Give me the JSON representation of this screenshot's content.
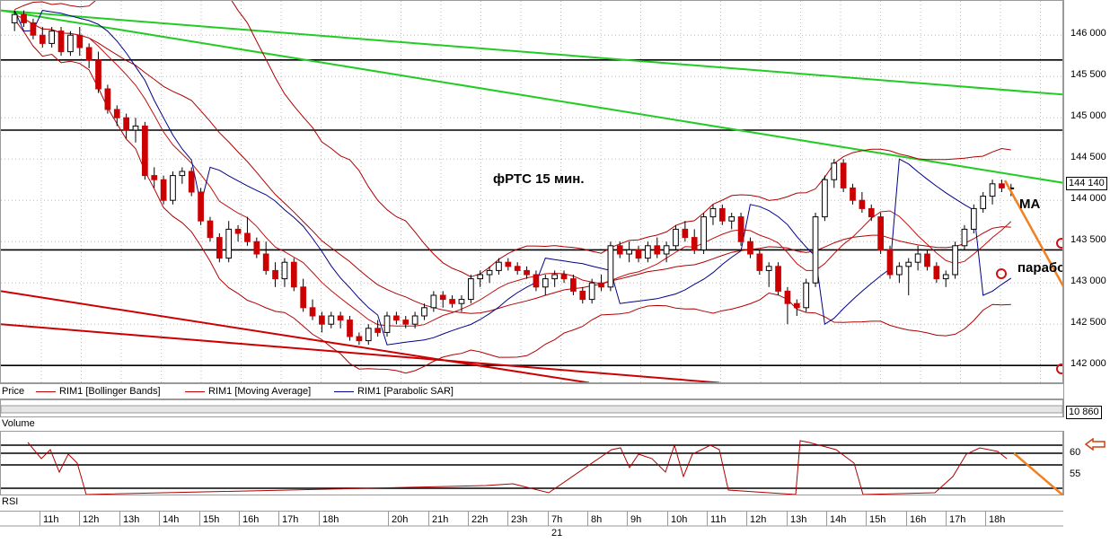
{
  "chart_data": {
    "type": "candlestick",
    "title": "фРТС   15 мин.",
    "price_axis": {
      "ticks": [
        "146 000",
        "145 500",
        "145 000",
        "144 500",
        "144 000",
        "143 500",
        "143 000",
        "142 500",
        "142 000"
      ],
      "ylim": [
        141850,
        146350
      ]
    },
    "last_price_tag": "144 140",
    "legend": [
      {
        "name": "Price",
        "color": "#000000"
      },
      {
        "name": "RIM1 [Bollinger Bands]",
        "color": "#c00000"
      },
      {
        "name": "RIM1 [Moving Average]",
        "color": "#c00000"
      },
      {
        "name": "RIM1 [Parabolic SAR]",
        "color": "#00008b"
      }
    ],
    "annotations": {
      "ma": "MA",
      "sar": "параболик"
    },
    "candles": [
      [
        146150,
        146300,
        146050,
        146250
      ],
      [
        146250,
        146300,
        146100,
        146150
      ],
      [
        146150,
        146200,
        145950,
        146000
      ],
      [
        146000,
        146100,
        145850,
        145900
      ],
      [
        145900,
        146100,
        145850,
        146050
      ],
      [
        146050,
        146100,
        145750,
        145800
      ],
      [
        145800,
        146050,
        145750,
        146000
      ],
      [
        146000,
        146100,
        145750,
        145850
      ],
      [
        145850,
        145900,
        145600,
        145700
      ],
      [
        145700,
        145800,
        145300,
        145350
      ],
      [
        145350,
        145400,
        145050,
        145100
      ],
      [
        145100,
        145150,
        144900,
        145000
      ],
      [
        145000,
        145050,
        144750,
        144850
      ],
      [
        144850,
        145000,
        144700,
        144900
      ],
      [
        144900,
        144950,
        144250,
        144300
      ],
      [
        144300,
        144400,
        144150,
        144250
      ],
      [
        144250,
        144300,
        143950,
        144000
      ],
      [
        144000,
        144350,
        143950,
        144300
      ],
      [
        144300,
        144400,
        144200,
        144350
      ],
      [
        144350,
        144400,
        144050,
        144100
      ],
      [
        144100,
        144150,
        143700,
        143750
      ],
      [
        143750,
        143800,
        143500,
        143550
      ],
      [
        143550,
        143600,
        143250,
        143300
      ],
      [
        143300,
        143750,
        143250,
        143650
      ],
      [
        143650,
        143700,
        143500,
        143600
      ],
      [
        143600,
        143800,
        143450,
        143500
      ],
      [
        143500,
        143550,
        143300,
        143350
      ],
      [
        143350,
        143500,
        143100,
        143150
      ],
      [
        143150,
        143250,
        142950,
        143050
      ],
      [
        143050,
        143300,
        142950,
        143250
      ],
      [
        143250,
        143300,
        142900,
        142950
      ],
      [
        142950,
        143050,
        142650,
        142700
      ],
      [
        142700,
        142800,
        142550,
        142600
      ],
      [
        142600,
        142650,
        142400,
        142500
      ],
      [
        142500,
        142650,
        142450,
        142600
      ],
      [
        142600,
        142650,
        142450,
        142550
      ],
      [
        142550,
        142600,
        142300,
        142350
      ],
      [
        142350,
        142400,
        142250,
        142300
      ],
      [
        142300,
        142500,
        142250,
        142450
      ],
      [
        142450,
        142550,
        142350,
        142400
      ],
      [
        142400,
        142650,
        142350,
        142600
      ],
      [
        142600,
        142650,
        142500,
        142550
      ],
      [
        142550,
        142600,
        142450,
        142500
      ],
      [
        142500,
        142650,
        142450,
        142600
      ],
      [
        142600,
        142750,
        142550,
        142700
      ],
      [
        142700,
        142900,
        142650,
        142850
      ],
      [
        142850,
        142900,
        142700,
        142800
      ],
      [
        142800,
        142850,
        142700,
        142750
      ],
      [
        142750,
        142850,
        142650,
        142800
      ],
      [
        142800,
        143100,
        142750,
        143050
      ],
      [
        143050,
        143150,
        142950,
        143100
      ],
      [
        143100,
        143200,
        143000,
        143150
      ],
      [
        143150,
        143300,
        143100,
        143250
      ],
      [
        143250,
        143300,
        143150,
        143200
      ],
      [
        143200,
        143250,
        143100,
        143150
      ],
      [
        143150,
        143200,
        143050,
        143100
      ],
      [
        143100,
        143150,
        142900,
        142950
      ],
      [
        142950,
        143100,
        142850,
        143050
      ],
      [
        143050,
        143150,
        142950,
        143100
      ],
      [
        143100,
        143150,
        143000,
        143050
      ],
      [
        143050,
        143100,
        142850,
        142900
      ],
      [
        142900,
        142950,
        142750,
        142800
      ],
      [
        142800,
        143050,
        142750,
        143000
      ],
      [
        143000,
        143100,
        142900,
        142950
      ],
      [
        142950,
        143500,
        142900,
        143450
      ],
      [
        143450,
        143500,
        143300,
        143350
      ],
      [
        143350,
        143500,
        143250,
        143400
      ],
      [
        143400,
        143450,
        143250,
        143300
      ],
      [
        143300,
        143500,
        143250,
        143450
      ],
      [
        143450,
        143550,
        143300,
        143350
      ],
      [
        143350,
        143500,
        143250,
        143450
      ],
      [
        143450,
        143700,
        143400,
        143650
      ],
      [
        143650,
        143750,
        143500,
        143550
      ],
      [
        143550,
        143650,
        143350,
        143400
      ],
      [
        143400,
        143850,
        143350,
        143800
      ],
      [
        143800,
        143950,
        143700,
        143900
      ],
      [
        143900,
        143950,
        143700,
        143750
      ],
      [
        143750,
        143850,
        143650,
        143800
      ],
      [
        143800,
        143850,
        143450,
        143500
      ],
      [
        143500,
        143550,
        143300,
        143350
      ],
      [
        143350,
        143400,
        143100,
        143150
      ],
      [
        143150,
        143250,
        142950,
        143200
      ],
      [
        143200,
        143250,
        142850,
        142900
      ],
      [
        142900,
        142950,
        142500,
        142750
      ],
      [
        142750,
        142800,
        142600,
        142700
      ],
      [
        142700,
        143050,
        142650,
        143000
      ],
      [
        143000,
        143850,
        142950,
        143800
      ],
      [
        143800,
        144300,
        143750,
        144250
      ],
      [
        144250,
        144500,
        144150,
        144450
      ],
      [
        144450,
        144500,
        144100,
        144150
      ],
      [
        144150,
        144200,
        143950,
        144000
      ],
      [
        144000,
        144100,
        143850,
        143900
      ],
      [
        143900,
        143950,
        143750,
        143800
      ],
      [
        143800,
        143850,
        143350,
        143400
      ],
      [
        143400,
        143450,
        143050,
        143100
      ],
      [
        143100,
        143250,
        143000,
        143200
      ],
      [
        143200,
        143300,
        142850,
        143250
      ],
      [
        143250,
        143450,
        143150,
        143350
      ],
      [
        143350,
        143400,
        143150,
        143200
      ],
      [
        143200,
        143250,
        143000,
        143050
      ],
      [
        143050,
        143150,
        142950,
        143100
      ],
      [
        143100,
        143500,
        143050,
        143450
      ],
      [
        143450,
        143700,
        143400,
        143650
      ],
      [
        143650,
        143950,
        143600,
        143900
      ],
      [
        143900,
        144100,
        143850,
        144050
      ],
      [
        144050,
        144250,
        143950,
        144200
      ],
      [
        144200,
        144250,
        144100,
        144150
      ],
      [
        144150,
        144200,
        144050,
        144150
      ]
    ],
    "horizontal_levels": [
      145700,
      144850,
      143400,
      142000
    ],
    "rsi_axis": {
      "ticks": [
        "60",
        "55"
      ]
    },
    "volume_tag": "10 860",
    "time_labels": [
      "11h",
      "12h",
      "13h",
      "14h",
      "15h",
      "16h",
      "17h",
      "18h",
      "20h",
      "21h",
      "22h",
      "23h",
      "7h",
      "8h",
      "9h",
      "10h",
      "11h",
      "12h",
      "13h",
      "14h",
      "15h",
      "16h",
      "17h",
      "18h"
    ],
    "date_label": "21",
    "pane_labels": {
      "volume": "Volume",
      "rsi": "RSI"
    }
  },
  "colors": {
    "bull": "#ffffff",
    "bear": "#cc0000",
    "bb": "#b00000",
    "ma": "#c01010",
    "sar": "#00008b",
    "trend_green": "#22cc22",
    "trend_red": "#cc0000",
    "arrow": "#f08020"
  }
}
